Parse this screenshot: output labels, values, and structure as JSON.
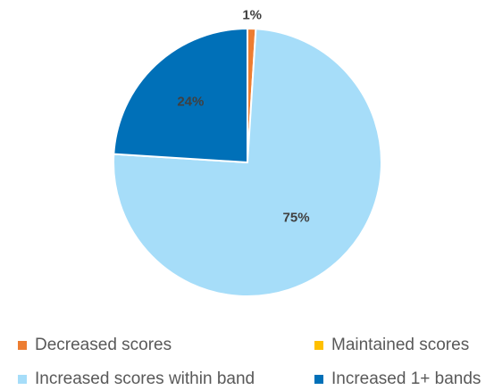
{
  "chart_data": {
    "type": "pie",
    "title": "",
    "categories": [
      "Decreased scores",
      "Maintained scores",
      "Increased scores within band",
      "Increased 1+ bands"
    ],
    "values": [
      1,
      0,
      75,
      24
    ],
    "data_labels": [
      "1%",
      "",
      "75%",
      "24%"
    ],
    "colors": [
      "#ED7D31",
      "#FFC000",
      "#A6DDF9",
      "#0070B8"
    ],
    "legend_position": "bottom"
  }
}
